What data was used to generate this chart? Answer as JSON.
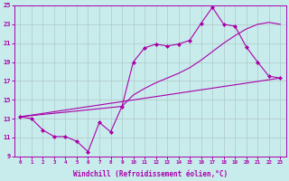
{
  "xlabel": "Windchill (Refroidissement éolien,°C)",
  "background_color": "#c8ecec",
  "line_color": "#aa00aa",
  "grid_color": "#b0c8c8",
  "xlim": [
    -0.5,
    23.5
  ],
  "ylim": [
    9,
    25
  ],
  "xticks": [
    0,
    1,
    2,
    3,
    4,
    5,
    6,
    7,
    8,
    9,
    10,
    11,
    12,
    13,
    14,
    15,
    16,
    17,
    18,
    19,
    20,
    21,
    22,
    23
  ],
  "yticks": [
    9,
    11,
    13,
    15,
    17,
    19,
    21,
    23,
    25
  ],
  "line1_x": [
    0,
    1,
    2,
    3,
    4,
    5,
    6,
    7,
    8,
    9,
    10,
    11,
    12,
    13,
    14,
    15,
    16,
    17,
    18,
    19,
    20,
    21,
    22,
    23
  ],
  "line1_y": [
    13.2,
    13.0,
    11.8,
    11.1,
    11.1,
    10.6,
    9.5,
    12.6,
    11.6,
    14.3,
    19.0,
    20.5,
    20.9,
    20.7,
    20.9,
    21.3,
    23.1,
    24.8,
    23.0,
    22.8,
    20.6,
    19.0,
    17.5,
    17.3
  ],
  "line2_x": [
    0,
    9,
    10,
    11,
    12,
    13,
    14,
    15,
    16,
    17,
    18,
    19,
    20,
    21,
    22,
    23
  ],
  "line2_y": [
    13.2,
    14.3,
    15.5,
    16.2,
    16.8,
    17.3,
    17.8,
    18.4,
    19.2,
    20.1,
    21.0,
    21.8,
    22.5,
    23.0,
    23.2,
    23.0
  ],
  "line3_x": [
    0,
    23
  ],
  "line3_y": [
    13.2,
    17.3
  ]
}
